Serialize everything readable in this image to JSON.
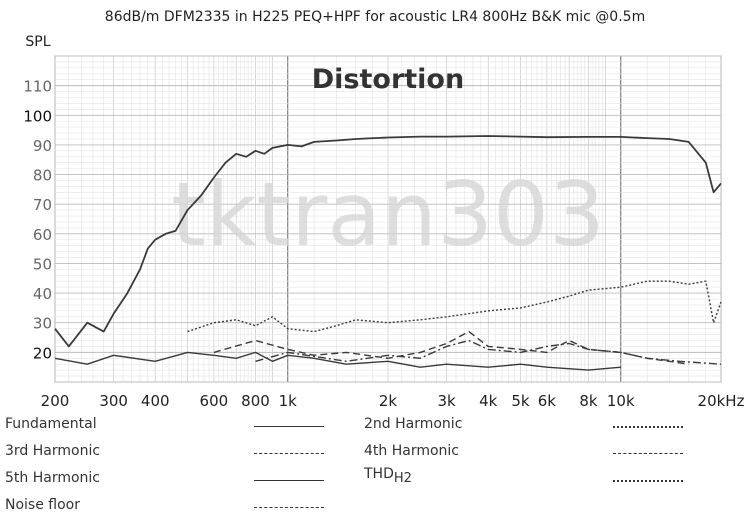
{
  "chart_data": {
    "type": "line",
    "title": "86dB/m DFM2335 in H225 PEQ+HPF for acoustic LR4 800Hz B&K mic @0.5m",
    "overlay_title": "Distortion",
    "watermark": "tktran303",
    "ylabel": "SPL",
    "xscale": "log",
    "xlim": [
      200,
      20000
    ],
    "ylim": [
      10,
      120
    ],
    "grid": true,
    "y_ticks": [
      "110",
      "100",
      "90",
      "80",
      "70",
      "60",
      "50",
      "40",
      "30",
      "20"
    ],
    "x_ticks": [
      {
        "value": 200,
        "label": "200"
      },
      {
        "value": 300,
        "label": "300"
      },
      {
        "value": 400,
        "label": "400"
      },
      {
        "value": 600,
        "label": "600"
      },
      {
        "value": 800,
        "label": "800"
      },
      {
        "value": 1000,
        "label": "1k"
      },
      {
        "value": 2000,
        "label": "2k"
      },
      {
        "value": 3000,
        "label": "3k"
      },
      {
        "value": 4000,
        "label": "4k"
      },
      {
        "value": 5000,
        "label": "5k"
      },
      {
        "value": 6000,
        "label": "6k"
      },
      {
        "value": 8000,
        "label": "8k"
      },
      {
        "value": 10000,
        "label": "10k"
      },
      {
        "value": 20000,
        "label": "20kHz"
      }
    ],
    "legend_placement": "bottom",
    "series": [
      {
        "name": "Fundamental",
        "style": "solid",
        "x": [
          200,
          220,
          250,
          280,
          300,
          330,
          360,
          380,
          400,
          430,
          460,
          500,
          550,
          600,
          650,
          700,
          750,
          800,
          850,
          900,
          1000,
          1100,
          1200,
          1400,
          1600,
          2000,
          2500,
          3000,
          4000,
          5000,
          6000,
          8000,
          10000,
          12000,
          14000,
          16000,
          18000,
          19000,
          20000
        ],
        "values": [
          28,
          22,
          30,
          27,
          33,
          40,
          48,
          55,
          58,
          60,
          61,
          68,
          73,
          79,
          84,
          87,
          86,
          88,
          87,
          89,
          90,
          89.5,
          91,
          91.5,
          92,
          92.5,
          92.8,
          92.8,
          93,
          92.8,
          92.6,
          92.7,
          92.7,
          92.3,
          92,
          91,
          84,
          74,
          77
        ]
      },
      {
        "name": "2nd Harmonic",
        "style": "dotted",
        "x": [
          500,
          600,
          700,
          800,
          900,
          1000,
          1200,
          1400,
          1600,
          2000,
          2500,
          3000,
          4000,
          5000,
          6000,
          7000,
          8000,
          10000,
          12000,
          14000,
          16000,
          18000,
          19000,
          20000
        ],
        "values": [
          27,
          30,
          31,
          29,
          32,
          28,
          27,
          29,
          31,
          30,
          31,
          32,
          34,
          35,
          37,
          39,
          41,
          42,
          44,
          44,
          43,
          44,
          30,
          37
        ]
      },
      {
        "name": "3rd Harmonic",
        "style": "dashed",
        "x": [
          600,
          800,
          1000,
          1200,
          1500,
          2000,
          2500,
          3000,
          3500,
          4000,
          5000,
          6000,
          7000,
          8000,
          10000,
          12000,
          14000,
          16000
        ],
        "values": [
          20,
          24,
          21,
          19,
          20,
          18,
          20,
          23,
          27,
          22,
          21,
          20,
          24,
          21,
          20,
          18,
          17,
          16
        ]
      },
      {
        "name": "4th Harmonic",
        "style": "dashdot",
        "x": [
          800,
          1000,
          1500,
          2000,
          2500,
          3000,
          3500,
          4000,
          5000,
          6000,
          7000,
          8000,
          10000,
          12000,
          15000,
          20000
        ],
        "values": [
          17,
          20,
          17,
          19,
          18,
          22,
          24,
          21,
          20,
          22,
          23,
          21,
          20,
          18,
          17,
          16
        ]
      },
      {
        "name": "5th Harmonic",
        "style": "solid",
        "x": [
          200,
          250,
          300,
          400,
          500,
          600,
          700,
          800,
          900,
          1000,
          1200,
          1500,
          2000,
          2500,
          3000,
          4000,
          5000,
          6000,
          8000,
          10000
        ],
        "values": [
          18,
          16,
          19,
          17,
          20,
          19,
          18,
          20,
          17,
          19,
          18,
          16,
          17,
          15,
          16,
          15,
          16,
          15,
          14,
          15
        ]
      },
      {
        "name": "THD",
        "style": "dotted",
        "x": [],
        "values": []
      },
      {
        "name": "Noise floor",
        "style": "dashed",
        "x": [],
        "values": []
      }
    ],
    "legend": [
      {
        "name": "Fundamental",
        "style": "solid",
        "col": 0,
        "row": 0
      },
      {
        "name": "3rd Harmonic",
        "style": "dashed",
        "col": 0,
        "row": 1
      },
      {
        "name": "5th Harmonic",
        "style": "solid",
        "col": 0,
        "row": 2
      },
      {
        "name": "Noise floor",
        "style": "dashed",
        "col": 0,
        "row": 3
      },
      {
        "name": "2nd Harmonic",
        "style": "dotted",
        "col": 1,
        "row": 0
      },
      {
        "name": "4th Harmonic",
        "style": "dashdot",
        "col": 1,
        "row": 1
      },
      {
        "name": "THD",
        "subscript": "H2",
        "style": "dotted",
        "col": 1,
        "row": 2
      }
    ]
  }
}
